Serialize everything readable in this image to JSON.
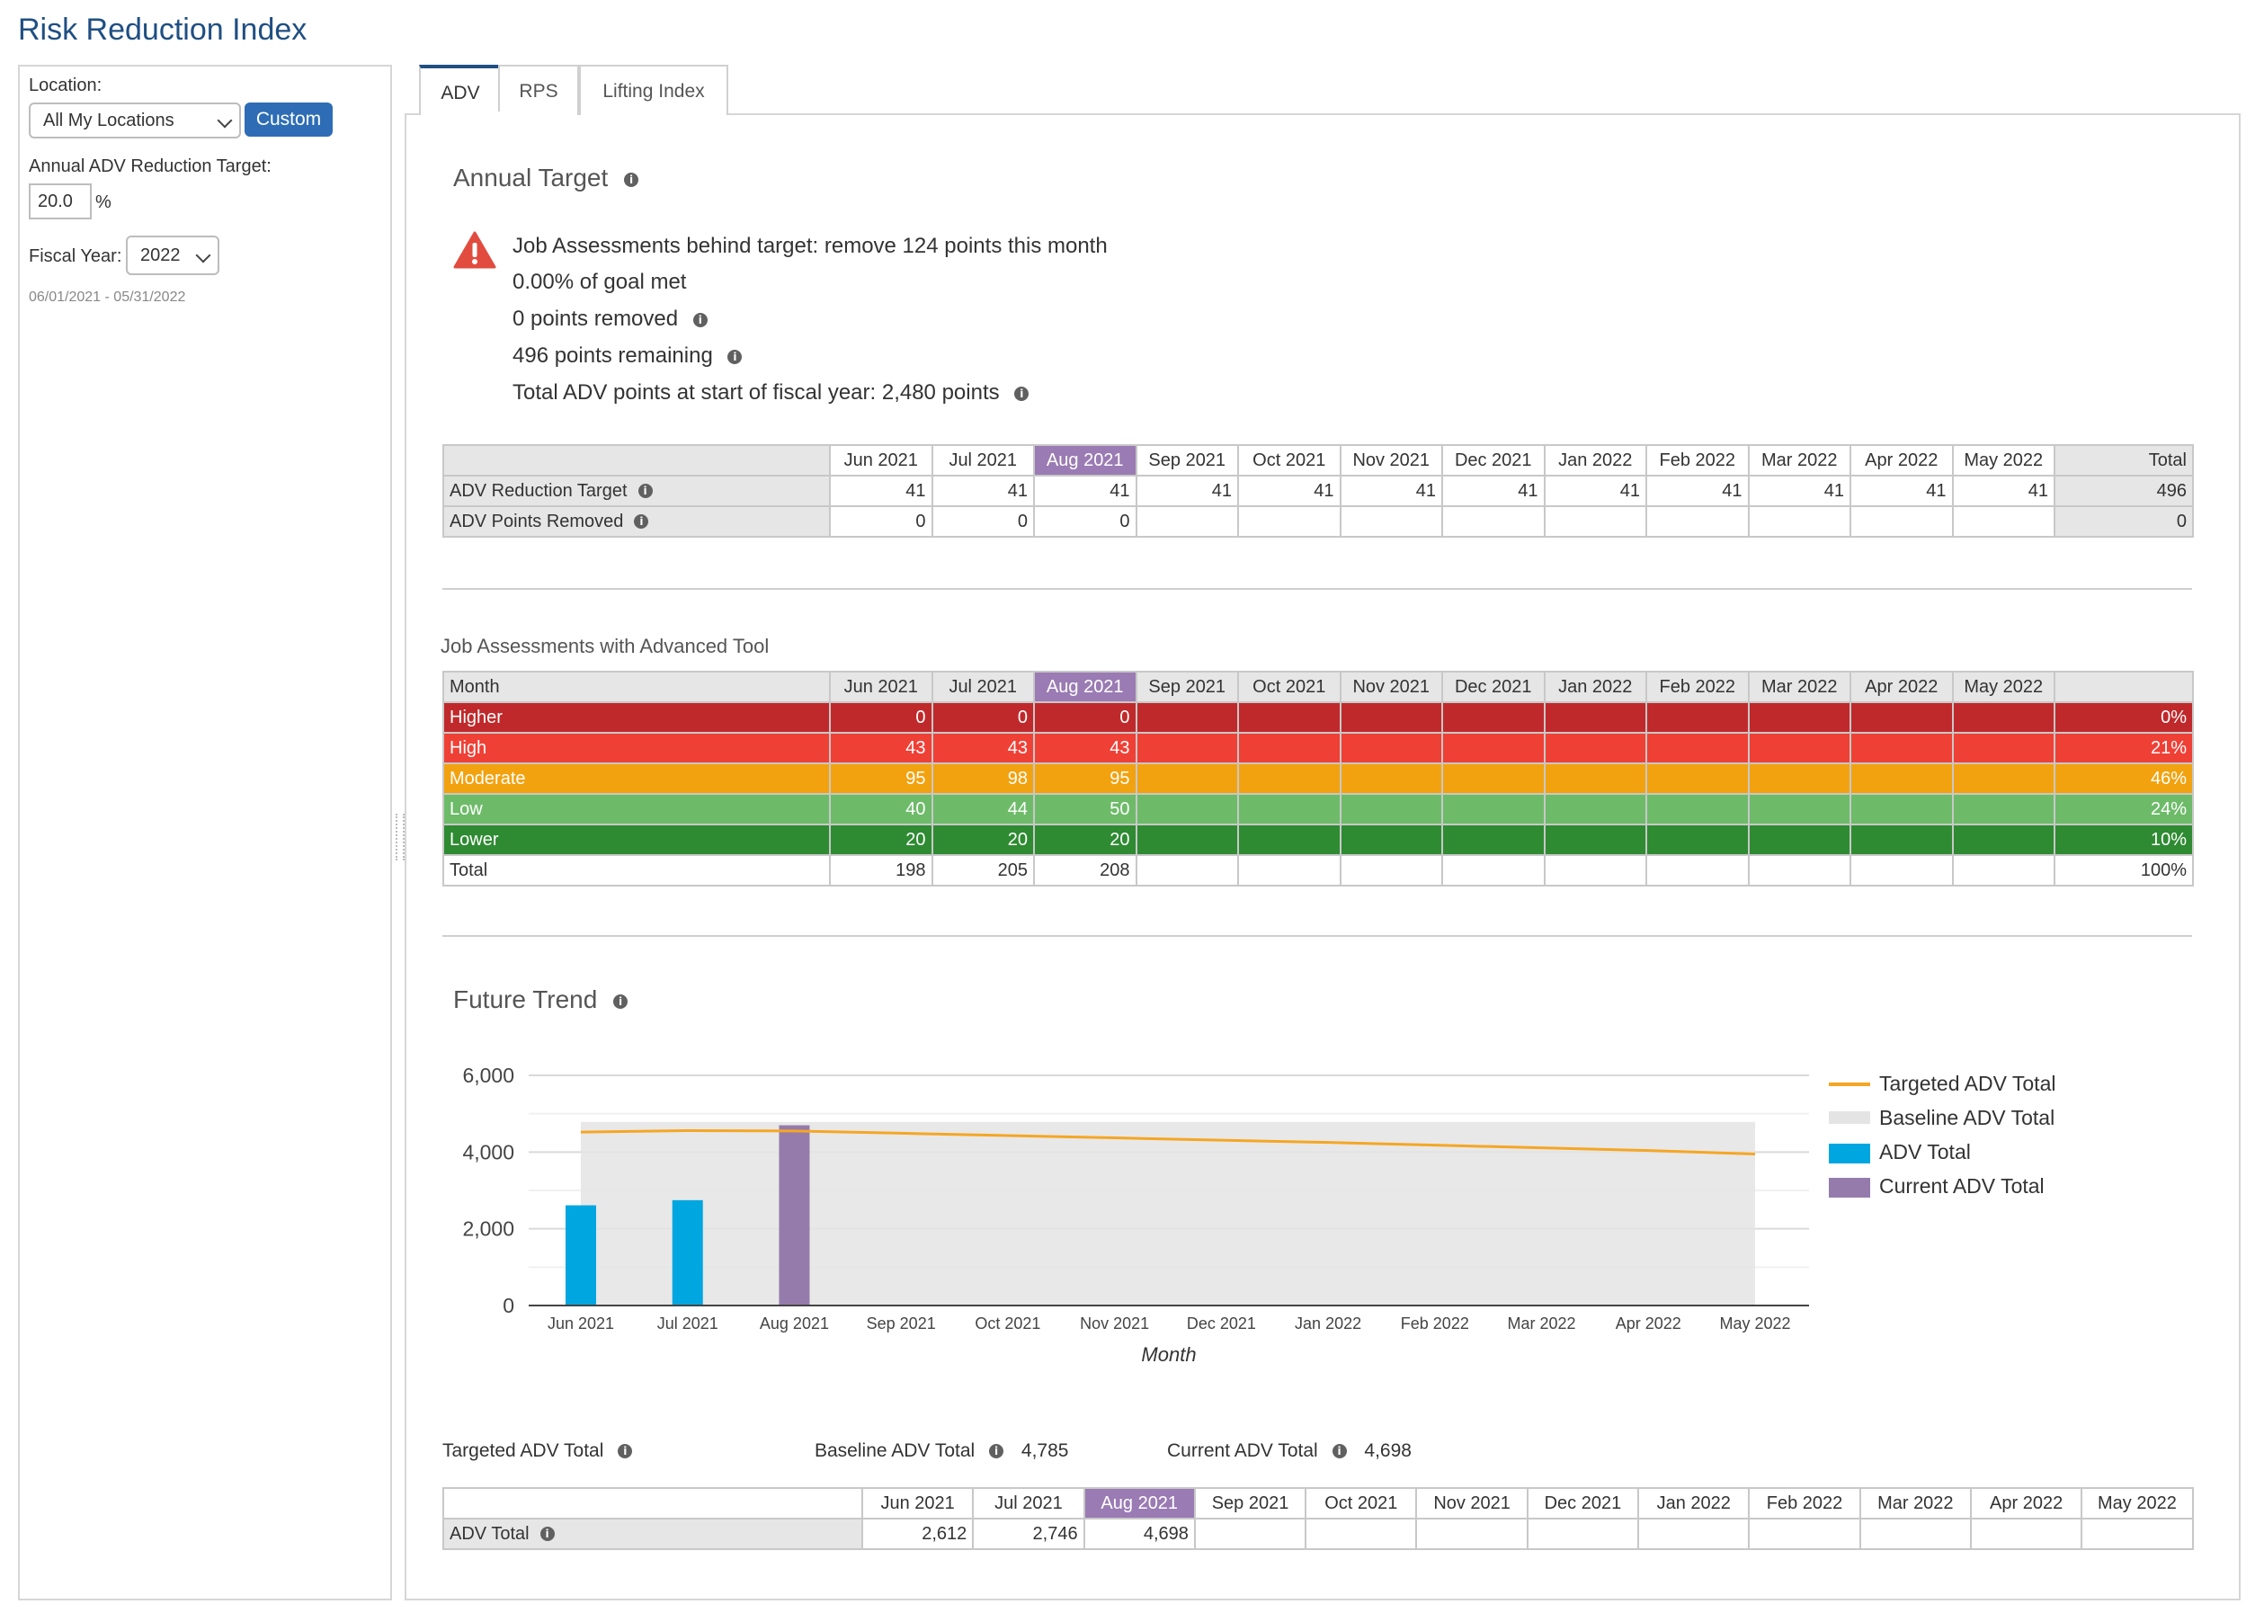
{
  "page_title": "Risk Reduction Index",
  "sidebar": {
    "location_label": "Location:",
    "location_value": "All My Locations",
    "custom_button": "Custom",
    "target_label": "Annual ADV Reduction Target:",
    "target_value": "20.0",
    "target_unit": "%",
    "fiscal_year_label": "Fiscal Year:",
    "fiscal_year_value": "2022",
    "date_range": "06/01/2021 - 05/31/2022"
  },
  "tabs": [
    {
      "label": "ADV",
      "active": true
    },
    {
      "label": "RPS",
      "active": false
    },
    {
      "label": "Lifting Index",
      "active": false
    }
  ],
  "annual_target": {
    "title": "Annual Target",
    "warning_icon": "warning-triangle-icon",
    "messages": [
      "Job Assessments behind target: remove 124 points this month",
      "0.00% of goal met",
      "0 points removed",
      "496 points remaining",
      "Total ADV points at start of fiscal year: 2,480 points"
    ]
  },
  "months": [
    "Jun 2021",
    "Jul 2021",
    "Aug 2021",
    "Sep 2021",
    "Oct 2021",
    "Nov 2021",
    "Dec 2021",
    "Jan 2022",
    "Feb 2022",
    "Mar 2022",
    "Apr 2022",
    "May 2022"
  ],
  "current_month_index": 2,
  "target_table": {
    "total_header": "Total",
    "rows": [
      {
        "label": "ADV Reduction Target",
        "values": [
          "41",
          "41",
          "41",
          "41",
          "41",
          "41",
          "41",
          "41",
          "41",
          "41",
          "41",
          "41"
        ],
        "total": "496"
      },
      {
        "label": "ADV Points Removed",
        "values": [
          "0",
          "0",
          "0",
          "",
          "",
          "",
          "",
          "",
          "",
          "",
          "",
          ""
        ],
        "total": "0"
      }
    ]
  },
  "assessments": {
    "title": "Job Assessments with Advanced Tool",
    "month_header": "Month",
    "rows": [
      {
        "label": "Higher",
        "values": [
          "0",
          "0",
          "0",
          "",
          "",
          "",
          "",
          "",
          "",
          "",
          "",
          ""
        ],
        "total": "0%"
      },
      {
        "label": "High",
        "values": [
          "43",
          "43",
          "43",
          "",
          "",
          "",
          "",
          "",
          "",
          "",
          "",
          ""
        ],
        "total": "21%"
      },
      {
        "label": "Moderate",
        "values": [
          "95",
          "98",
          "95",
          "",
          "",
          "",
          "",
          "",
          "",
          "",
          "",
          ""
        ],
        "total": "46%"
      },
      {
        "label": "Low",
        "values": [
          "40",
          "44",
          "50",
          "",
          "",
          "",
          "",
          "",
          "",
          "",
          "",
          ""
        ],
        "total": "24%"
      },
      {
        "label": "Lower",
        "values": [
          "20",
          "20",
          "20",
          "",
          "",
          "",
          "",
          "",
          "",
          "",
          "",
          ""
        ],
        "total": "10%"
      },
      {
        "label": "Total",
        "values": [
          "198",
          "205",
          "208",
          "",
          "",
          "",
          "",
          "",
          "",
          "",
          "",
          ""
        ],
        "total": "100%"
      }
    ],
    "colors": {
      "Higher": "#c0292b",
      "High": "#ef4036",
      "Moderate": "#f2a20f",
      "Low": "#6dbb69",
      "Lower": "#2e8b32"
    }
  },
  "future_trend": {
    "title": "Future Trend",
    "summary": {
      "targeted_label": "Targeted ADV Total",
      "baseline_label": "Baseline ADV Total",
      "baseline_value": "4,785",
      "current_label": "Current ADV Total",
      "current_value": "4,698"
    },
    "adv_table": {
      "label": "ADV Total",
      "values": [
        "2,612",
        "2,746",
        "4,698",
        "",
        "",
        "",
        "",
        "",
        "",
        "",
        "",
        ""
      ]
    }
  },
  "chart_data": {
    "type": "bar",
    "title": "",
    "xlabel": "Month",
    "ylabel": "",
    "categories": [
      "Jun 2021",
      "Jul 2021",
      "Aug 2021",
      "Sep 2021",
      "Oct 2021",
      "Nov 2021",
      "Dec 2021",
      "Jan 2022",
      "Feb 2022",
      "Mar 2022",
      "Apr 2022",
      "May 2022"
    ],
    "ylim": [
      0,
      6000
    ],
    "yticks": [
      "0",
      "2,000",
      "4,000",
      "6,000"
    ],
    "grid": true,
    "legend_position": "right",
    "series": [
      {
        "name": "Targeted ADV Total",
        "kind": "line",
        "color": "#f5a623",
        "values": [
          4520,
          4560,
          4550,
          4490,
          4430,
          4370,
          4310,
          4250,
          4180,
          4110,
          4040,
          3950
        ]
      },
      {
        "name": "Baseline ADV Total",
        "kind": "area",
        "color": "#e4e4e4",
        "values": [
          4785,
          4785,
          4785,
          4785,
          4785,
          4785,
          4785,
          4785,
          4785,
          4785,
          4785,
          4785
        ]
      },
      {
        "name": "ADV Total",
        "kind": "bar",
        "color": "#00a6e0",
        "values": [
          2612,
          2746,
          null,
          null,
          null,
          null,
          null,
          null,
          null,
          null,
          null,
          null
        ]
      },
      {
        "name": "Current ADV Total",
        "kind": "bar",
        "color": "#957bab",
        "values": [
          null,
          null,
          4698,
          null,
          null,
          null,
          null,
          null,
          null,
          null,
          null,
          null
        ]
      }
    ]
  }
}
